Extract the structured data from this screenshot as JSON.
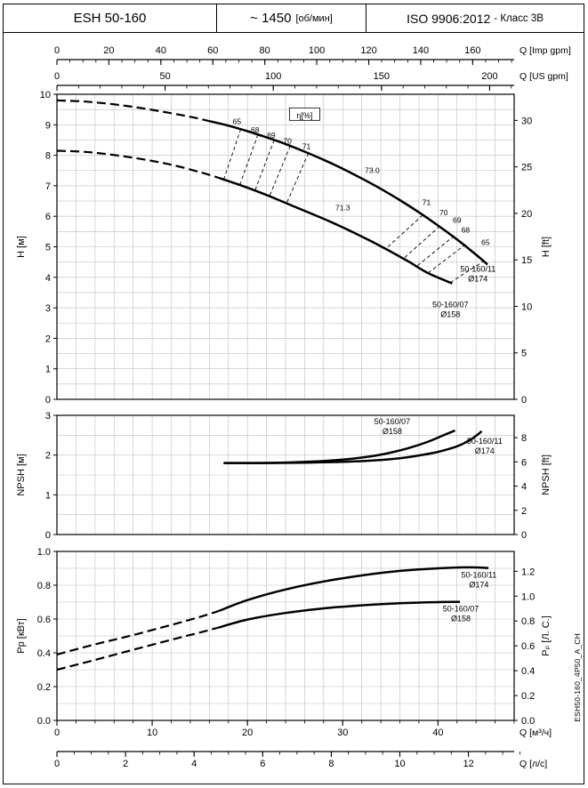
{
  "header": {
    "model": "ESH 50-160",
    "speed_value": "~ 1450",
    "speed_unit": "[об/мин]",
    "standard": "ISO 9906:2012",
    "standard_class": "- Класс 3В"
  },
  "side_code": "ESH50-160_4P50_A_CH",
  "chart_data": {
    "type": "line",
    "x_unit": "м³/ч",
    "x_max": 48,
    "grid_x": 2,
    "x_axes_top": [
      {
        "label": "Q [Imp gpm]",
        "factor": 0.27277,
        "minor_step": 5,
        "ticks": [
          [
            0,
            "0"
          ],
          [
            20,
            "20"
          ],
          [
            40,
            "40"
          ],
          [
            60,
            "60"
          ],
          [
            80,
            "80"
          ],
          [
            100,
            "100"
          ],
          [
            120,
            "120"
          ],
          [
            140,
            "140"
          ],
          [
            160,
            "160"
          ]
        ]
      },
      {
        "label": "Q [US gpm]",
        "factor": 0.227125,
        "minor_step": 10,
        "ticks": [
          [
            0,
            "0"
          ],
          [
            50,
            "50"
          ],
          [
            100,
            "100"
          ],
          [
            150,
            "150"
          ],
          [
            200,
            "200"
          ]
        ]
      }
    ],
    "x_axes_bottom": [
      {
        "label": "Q [м³/ч]",
        "factor": 1,
        "minor_step": 2,
        "ticks": [
          [
            0,
            "0"
          ],
          [
            10,
            "10"
          ],
          [
            20,
            "20"
          ],
          [
            30,
            "30"
          ],
          [
            40,
            "40"
          ]
        ]
      },
      {
        "label": "Q [л/с]",
        "factor": 3.6,
        "minor_step": 0.5,
        "ticks": [
          [
            0,
            "0"
          ],
          [
            2,
            "2"
          ],
          [
            4,
            "4"
          ],
          [
            6,
            "6"
          ],
          [
            8,
            "8"
          ],
          [
            10,
            "10"
          ],
          [
            12,
            "12"
          ]
        ]
      }
    ],
    "charts": [
      {
        "name": "head",
        "ylabel_left": "H [м]",
        "ylabel_right": "H [ft]",
        "ylim": [
          0,
          10
        ],
        "grid_step": 0.5,
        "right_factor": 0.3048,
        "yticks_left": [
          [
            0,
            "0"
          ],
          [
            1,
            "1"
          ],
          [
            2,
            "2"
          ],
          [
            3,
            "3"
          ],
          [
            4,
            "4"
          ],
          [
            5,
            "5"
          ],
          [
            6,
            "6"
          ],
          [
            7,
            "7"
          ],
          [
            8,
            "8"
          ],
          [
            9,
            "9"
          ],
          [
            10,
            "10"
          ]
        ],
        "yticks_right": [
          [
            0,
            "0"
          ],
          [
            5,
            "5"
          ],
          [
            10,
            "10"
          ],
          [
            15,
            "15"
          ],
          [
            20,
            "20"
          ],
          [
            25,
            "25"
          ],
          [
            30,
            "30"
          ]
        ],
        "series": [
          {
            "id": "50-160-11-d174",
            "name": "50-160/11 Ø174",
            "dashed": [
              [
                0,
                9.8
              ],
              [
                3,
                9.76
              ],
              [
                6,
                9.67
              ],
              [
                9,
                9.54
              ],
              [
                12,
                9.38
              ],
              [
                14.5,
                9.23
              ],
              [
                16,
                9.12
              ]
            ],
            "solid": [
              [
                16,
                9.12
              ],
              [
                18,
                8.97
              ],
              [
                20,
                8.79
              ],
              [
                22,
                8.59
              ],
              [
                24,
                8.37
              ],
              [
                26,
                8.12
              ],
              [
                28,
                7.85
              ],
              [
                30,
                7.56
              ],
              [
                32,
                7.24
              ],
              [
                34,
                6.9
              ],
              [
                36,
                6.53
              ],
              [
                38,
                6.13
              ],
              [
                40,
                5.7
              ],
              [
                42,
                5.24
              ],
              [
                44,
                4.74
              ],
              [
                45.2,
                4.42
              ]
            ]
          },
          {
            "id": "50-160-07-d158",
            "name": "50-160/07 Ø158",
            "dashed": [
              [
                0,
                8.15
              ],
              [
                3,
                8.11
              ],
              [
                6,
                8.01
              ],
              [
                9,
                7.87
              ],
              [
                12,
                7.69
              ],
              [
                15,
                7.45
              ],
              [
                17,
                7.26
              ]
            ],
            "solid": [
              [
                17,
                7.26
              ],
              [
                19,
                7.05
              ],
              [
                21,
                6.82
              ],
              [
                23,
                6.57
              ],
              [
                25,
                6.31
              ],
              [
                27,
                6.05
              ],
              [
                29,
                5.78
              ],
              [
                31,
                5.49
              ],
              [
                33,
                5.18
              ],
              [
                35,
                4.85
              ],
              [
                37,
                4.5
              ],
              [
                39,
                4.13
              ],
              [
                41.5,
                3.8
              ]
            ]
          }
        ],
        "eff_lines": [
          {
            "label": "65",
            "line": [
              [
                19.3,
                8.86
              ],
              [
                17.5,
                7.2
              ]
            ],
            "label_pos": [
              18.9,
              9.02
            ]
          },
          {
            "label": "68",
            "line": [
              [
                21.1,
                8.68
              ],
              [
                19.2,
                7.03
              ]
            ],
            "label_pos": [
              20.8,
              8.74
            ]
          },
          {
            "label": "69",
            "line": [
              [
                22.8,
                8.5
              ],
              [
                20.8,
                6.85
              ]
            ],
            "label_pos": [
              22.5,
              8.57
            ]
          },
          {
            "label": "70",
            "line": [
              [
                24.5,
                8.31
              ],
              [
                22.3,
                6.65
              ]
            ],
            "label_pos": [
              24.2,
              8.38
            ]
          },
          {
            "label": "71",
            "line": [
              [
                26.4,
                8.07
              ],
              [
                24.1,
                6.42
              ]
            ],
            "label_pos": [
              26.2,
              8.2
            ]
          },
          {
            "label": "71",
            "line": [
              [
                38.4,
                6.04
              ],
              [
                34.5,
                4.93
              ]
            ],
            "label_pos": [
              38.8,
              6.37
            ]
          },
          {
            "label": "70",
            "line": [
              [
                40.2,
                5.68
              ],
              [
                36.4,
                4.62
              ]
            ],
            "label_pos": [
              40.6,
              6.04
            ]
          },
          {
            "label": "69",
            "line": [
              [
                41.7,
                5.36
              ],
              [
                37.8,
                4.37
              ]
            ],
            "label_pos": [
              42.0,
              5.78
            ]
          },
          {
            "label": "68",
            "line": [
              [
                42.9,
                5.08
              ],
              [
                39.0,
                4.15
              ]
            ],
            "label_pos": [
              42.9,
              5.46
            ]
          },
          {
            "label": "65",
            "line": [
              [
                44.9,
                4.55
              ],
              [
                41.3,
                3.83
              ]
            ],
            "label_pos": [
              45.0,
              5.06
            ]
          }
        ],
        "eta_box": {
          "text": "η[%]",
          "pos": [
            26.0,
            9.32
          ]
        },
        "annotations": [
          {
            "text": "73.0",
            "pos": [
              33.1,
              7.42
            ]
          },
          {
            "text": "71.3",
            "pos": [
              30.0,
              6.2
            ]
          }
        ],
        "curve_labels": [
          {
            "lines": [
              "50-160/11",
              "Ø174"
            ],
            "pos": [
              44.2,
              4.18
            ]
          },
          {
            "lines": [
              "50-160/07",
              "Ø158"
            ],
            "pos": [
              41.3,
              3.02
            ]
          }
        ]
      },
      {
        "name": "npsh",
        "ylabel_left": "NPSH [м]",
        "ylabel_right": "NPSH [ft]",
        "ylim": [
          0,
          3
        ],
        "grid_step": 0.5,
        "right_factor": 0.3048,
        "yticks_left": [
          [
            0,
            "0"
          ],
          [
            1,
            "1"
          ],
          [
            2,
            "2"
          ],
          [
            3,
            "3"
          ]
        ],
        "yticks_right": [
          [
            0,
            "0"
          ],
          [
            2,
            "2"
          ],
          [
            4,
            "4"
          ],
          [
            6,
            "6"
          ],
          [
            8,
            "8"
          ]
        ],
        "series": [
          {
            "id": "npsh-50-160-07-d158",
            "name": "50-160/07 Ø158",
            "dashed": [],
            "solid": [
              [
                17.5,
                1.8
              ],
              [
                21,
                1.8
              ],
              [
                25,
                1.82
              ],
              [
                28,
                1.85
              ],
              [
                31,
                1.91
              ],
              [
                33,
                1.97
              ],
              [
                35,
                2.06
              ],
              [
                37,
                2.18
              ],
              [
                39,
                2.34
              ],
              [
                40.8,
                2.52
              ],
              [
                41.8,
                2.62
              ]
            ]
          },
          {
            "id": "npsh-50-160-11-d174",
            "name": "50-160/11 Ø174",
            "dashed": [],
            "solid": [
              [
                17.5,
                1.8
              ],
              [
                22,
                1.8
              ],
              [
                26,
                1.81
              ],
              [
                30,
                1.83
              ],
              [
                33,
                1.86
              ],
              [
                36,
                1.92
              ],
              [
                38,
                1.99
              ],
              [
                40,
                2.08
              ],
              [
                42,
                2.22
              ],
              [
                43.5,
                2.4
              ],
              [
                44.6,
                2.6
              ]
            ]
          }
        ],
        "eff_lines": [],
        "annotations": [],
        "curve_labels": [
          {
            "lines": [
              "50-160/07",
              "Ø158"
            ],
            "pos": [
              35.2,
              2.78
            ]
          },
          {
            "lines": [
              "50-160/11",
              "Ø174"
            ],
            "pos": [
              44.9,
              2.28
            ]
          }
        ]
      },
      {
        "name": "power",
        "ylabel_left": "Pp [кВт]",
        "ylabel_right": "Pₚ [Л. С.]",
        "ylim": [
          0,
          1
        ],
        "grid_step": 0.1,
        "right_factor": 0.7355,
        "yticks_left": [
          [
            0,
            "0.0"
          ],
          [
            0.2,
            "0.2"
          ],
          [
            0.4,
            "0.4"
          ],
          [
            0.6,
            "0.6"
          ],
          [
            0.8,
            "0.8"
          ],
          [
            1,
            "1.0"
          ]
        ],
        "yticks_right": [
          [
            0,
            "0.0"
          ],
          [
            0.2,
            "0.2"
          ],
          [
            0.4,
            "0.4"
          ],
          [
            0.6,
            "0.6"
          ],
          [
            0.8,
            "0.8"
          ],
          [
            1,
            "1.0"
          ],
          [
            1.2,
            "1.2"
          ]
        ],
        "series": [
          {
            "id": "power-50-160-11-d174",
            "name": "50-160/11 Ø174",
            "dashed": [
              [
                0,
                0.39
              ],
              [
                4,
                0.45
              ],
              [
                8,
                0.505
              ],
              [
                12,
                0.565
              ],
              [
                15,
                0.612
              ],
              [
                17,
                0.648
              ]
            ],
            "solid": [
              [
                17,
                0.648
              ],
              [
                20,
                0.712
              ],
              [
                24,
                0.775
              ],
              [
                28,
                0.822
              ],
              [
                32,
                0.858
              ],
              [
                36,
                0.885
              ],
              [
                40,
                0.9
              ],
              [
                43,
                0.906
              ],
              [
                45.3,
                0.902
              ]
            ]
          },
          {
            "id": "power-50-160-07-d158",
            "name": "50-160/07 Ø158",
            "dashed": [
              [
                0,
                0.3
              ],
              [
                4,
                0.358
              ],
              [
                8,
                0.418
              ],
              [
                12,
                0.477
              ],
              [
                15,
                0.52
              ],
              [
                17,
                0.55
              ]
            ],
            "solid": [
              [
                17,
                0.55
              ],
              [
                20,
                0.597
              ],
              [
                24,
                0.636
              ],
              [
                28,
                0.663
              ],
              [
                32,
                0.681
              ],
              [
                36,
                0.693
              ],
              [
                40,
                0.7
              ],
              [
                42.3,
                0.701
              ]
            ]
          }
        ],
        "eff_lines": [],
        "annotations": [],
        "curve_labels": [
          {
            "lines": [
              "50-160/11",
              "Ø174"
            ],
            "pos": [
              44.3,
              0.845
            ]
          },
          {
            "lines": [
              "50-160/07",
              "Ø158"
            ],
            "pos": [
              42.4,
              0.645
            ]
          }
        ]
      }
    ]
  }
}
